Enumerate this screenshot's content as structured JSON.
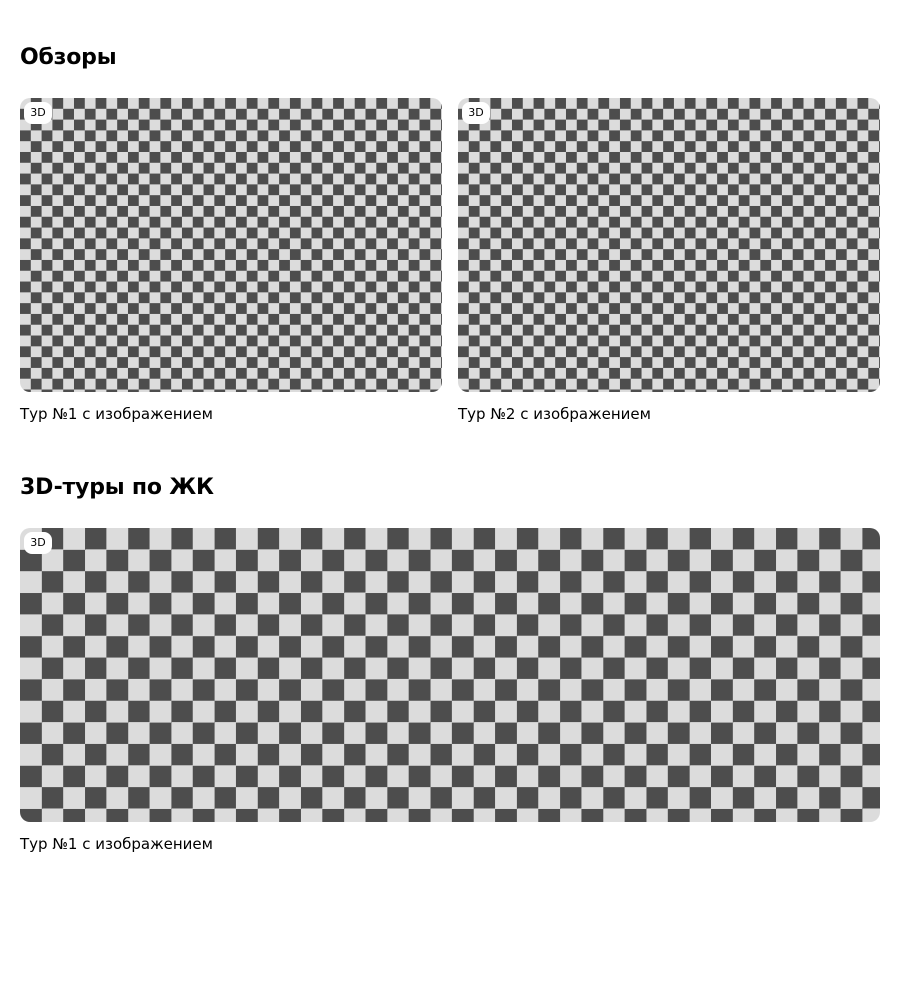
{
  "reviews": {
    "title": "Обзоры",
    "cards": [
      {
        "badge": "3D",
        "caption": "Тур №1 с изображением"
      },
      {
        "badge": "3D",
        "caption": "Тур №2 с изображением"
      }
    ]
  },
  "complex_tours": {
    "title": "3D-туры по ЖК",
    "cards": [
      {
        "badge": "3D",
        "caption": "Тур №1 с изображением"
      }
    ]
  },
  "colors": {
    "checker_dark": "#4d4d4d",
    "checker_light": "#dcdcdc",
    "badge_background": "#ffffff",
    "text": "#000000"
  }
}
